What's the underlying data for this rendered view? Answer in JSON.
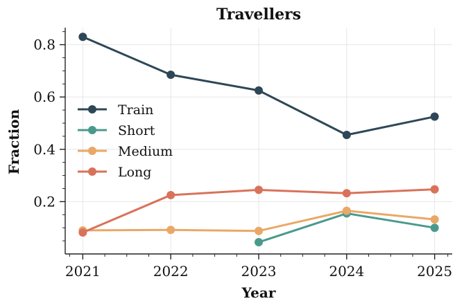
{
  "chart_data": {
    "type": "line",
    "title": "Travellers",
    "xlabel": "Year",
    "ylabel": "Fraction",
    "x": [
      2021,
      2022,
      2023,
      2024,
      2025
    ],
    "xlim": [
      2020.8,
      2025.2
    ],
    "ylim": [
      0.0,
      0.865
    ],
    "yticks": [
      "0.2",
      "0.4",
      "0.6",
      "0.8"
    ],
    "xticks": [
      "2021",
      "2022",
      "2023",
      "2024",
      "2025"
    ],
    "grid": true,
    "legend_position": "center-left",
    "series": [
      {
        "name": "Train",
        "color": "#2e4756",
        "values": [
          0.83,
          0.685,
          0.625,
          0.455,
          0.525
        ]
      },
      {
        "name": "Short",
        "color": "#4a9a8c",
        "values": [
          null,
          null,
          0.045,
          0.155,
          0.1
        ]
      },
      {
        "name": "Medium",
        "color": "#e9a866",
        "values": [
          0.09,
          0.092,
          0.088,
          0.165,
          0.132
        ]
      },
      {
        "name": "Long",
        "color": "#d9725a",
        "values": [
          0.082,
          0.225,
          0.245,
          0.232,
          0.247
        ]
      }
    ]
  }
}
